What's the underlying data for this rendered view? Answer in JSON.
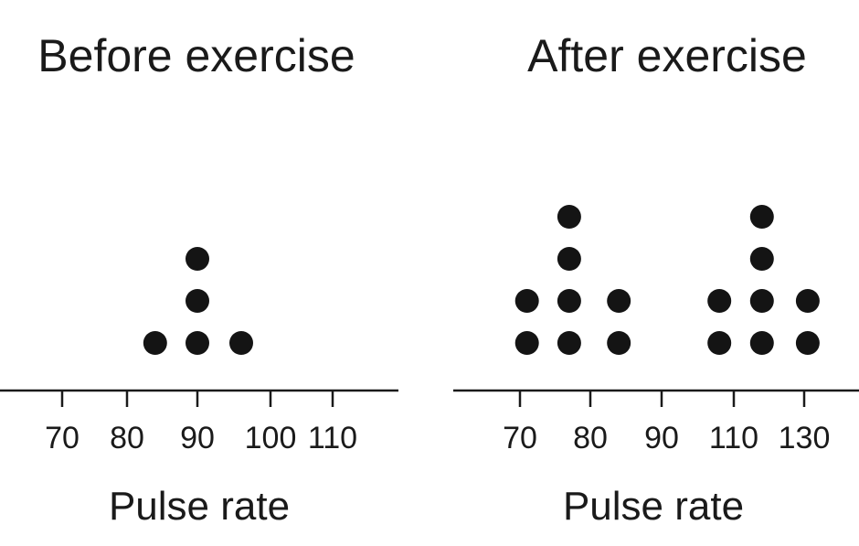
{
  "chart_data": [
    {
      "type": "scatter",
      "subtype": "dot-plot",
      "title": "Before exercise",
      "xlabel": "Pulse rate",
      "x_ticks": [
        70,
        80,
        90,
        100,
        110
      ],
      "points": [
        {
          "x": 84,
          "count": 1
        },
        {
          "x": 90,
          "count": 3
        },
        {
          "x": 96,
          "count": 1
        }
      ],
      "dot_color": "#141414",
      "grid": false
    },
    {
      "type": "scatter",
      "subtype": "dot-plot",
      "title": "After exercise",
      "xlabel": "Pulse rate",
      "x_ticks": [
        70,
        80,
        90,
        110,
        130
      ],
      "points": [
        {
          "x": 71,
          "count": 2
        },
        {
          "x": 77,
          "count": 4
        },
        {
          "x": 84,
          "count": 2
        },
        {
          "x": 106,
          "count": 2
        },
        {
          "x": 118,
          "count": 4
        },
        {
          "x": 131,
          "count": 2
        }
      ],
      "dot_color": "#141414",
      "grid": false
    }
  ]
}
